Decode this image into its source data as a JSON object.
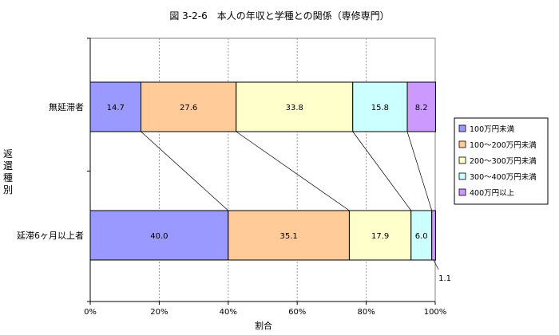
{
  "chart_data": {
    "type": "bar",
    "orientation": "horizontal",
    "stacked": true,
    "title": "図 3-2-6　本人の年収と学種との関係（専修専門）",
    "xlabel": "割合",
    "ylabel": "返還種別",
    "categories": [
      "無延滞者",
      "延滞6ヶ月以上者"
    ],
    "series": [
      {
        "name": "100万円未満",
        "values": [
          14.7,
          40.0
        ],
        "color": "#9999FF"
      },
      {
        "name": "100～200万円未満",
        "values": [
          27.6,
          35.1
        ],
        "color": "#FFCC99"
      },
      {
        "name": "200～300万円未満",
        "values": [
          33.8,
          17.9
        ],
        "color": "#FFFFCC"
      },
      {
        "name": "300～400万円未満",
        "values": [
          15.8,
          6.0
        ],
        "color": "#CCFFFF"
      },
      {
        "name": "400万円以上",
        "values": [
          8.2,
          1.1
        ],
        "color": "#CC99FF"
      }
    ],
    "value_labels": [
      [
        "14.7",
        "27.6",
        "33.8",
        "15.8",
        "8.2"
      ],
      [
        "40.0",
        "35.1",
        "17.9",
        "6.0",
        "1.1"
      ]
    ],
    "xlim": [
      0,
      100
    ],
    "xticks": [
      "0%",
      "20%",
      "40%",
      "60%",
      "80%",
      "100%"
    ],
    "grid": true,
    "series_lines": true,
    "legend_position": "right"
  }
}
